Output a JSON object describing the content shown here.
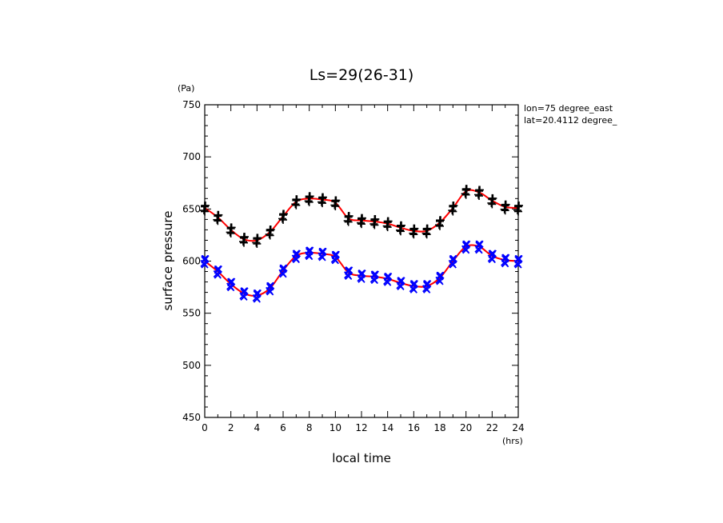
{
  "chart_data": {
    "type": "scatter",
    "title": "Ls=29(26-31)",
    "xlabel": "local time",
    "ylabel": "surface pressure",
    "x_unit": "(hrs)",
    "y_unit": "(Pa)",
    "annotations": [
      "lon=75 degree_east",
      "lat=20.4112 degree_"
    ],
    "xlim": [
      0,
      24
    ],
    "ylim": [
      450,
      750
    ],
    "x_ticks": [
      0,
      2,
      4,
      6,
      8,
      10,
      12,
      14,
      16,
      18,
      20,
      22,
      24
    ],
    "y_ticks": [
      450,
      500,
      550,
      600,
      650,
      700,
      750
    ],
    "x_tick_labels": [
      "0",
      "2",
      "4",
      "6",
      "8",
      "10",
      "12",
      "14",
      "16",
      "18",
      "20",
      "22",
      "24"
    ],
    "y_tick_labels": [
      "450",
      "500",
      "550",
      "600",
      "650",
      "700",
      "750"
    ],
    "grid": false,
    "x": [
      0,
      1,
      2,
      3,
      4,
      5,
      6,
      7,
      8,
      9,
      10,
      11,
      12,
      13,
      14,
      15,
      16,
      17,
      18,
      19,
      20,
      21,
      22,
      23,
      24
    ],
    "series": [
      {
        "marker": "plus",
        "color": "#000000",
        "fit_color": "#ff0000",
        "values": [
          651,
          642,
          630,
          621,
          620,
          628,
          643,
          657,
          660,
          659,
          656,
          641,
          639,
          638,
          636,
          632,
          629,
          629,
          637,
          651,
          667,
          666,
          658,
          652,
          651
        ]
      },
      {
        "marker": "x",
        "color": "#0000ff",
        "fit_color": "#ff0000",
        "values": [
          600,
          590,
          578,
          569,
          567,
          574,
          591,
          605,
          608,
          607,
          604,
          589,
          586,
          585,
          583,
          579,
          576,
          576,
          584,
          600,
          614,
          614,
          605,
          601,
          600
        ]
      }
    ]
  }
}
